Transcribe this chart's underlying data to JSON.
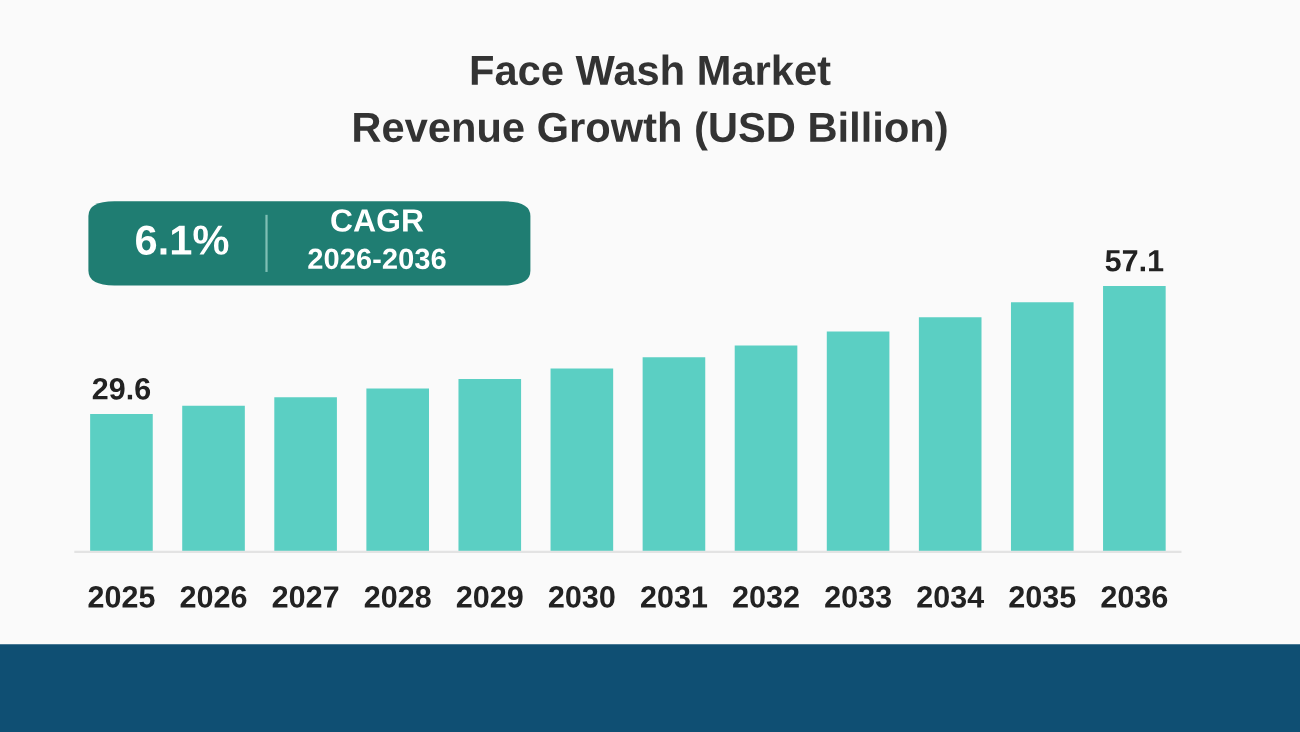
{
  "chart_data": {
    "type": "bar",
    "title": "Face Wash Market\nRevenue Growth (USD Billion)",
    "categories": [
      "2025",
      "2026",
      "2027",
      "2028",
      "2029",
      "2030",
      "2031",
      "2032",
      "2033",
      "2034",
      "2035",
      "2036"
    ],
    "values": [
      29.6,
      31.4,
      33.2,
      35.1,
      37.1,
      39.4,
      41.8,
      44.3,
      47.3,
      50.4,
      53.6,
      57.1
    ],
    "value_labels": [
      "29.6",
      null,
      null,
      null,
      null,
      null,
      null,
      null,
      null,
      null,
      null,
      "57.1"
    ],
    "color": "#5bcfc3",
    "annotations": [
      "6.1%",
      "CAGR",
      "2026-2036"
    ],
    "grid": false,
    "legend": false,
    "tick_labels": "x"
  }
}
